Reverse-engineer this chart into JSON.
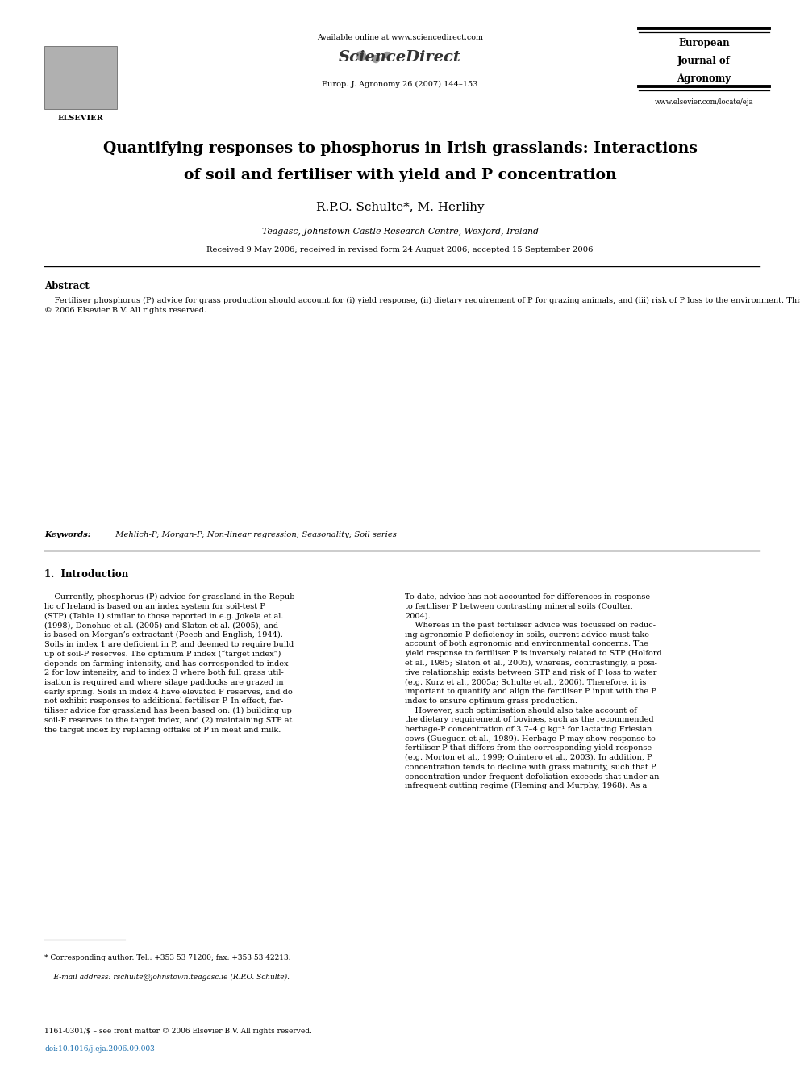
{
  "page_width": 9.92,
  "page_height": 13.23,
  "background_color": "#ffffff",
  "header_available": "Available online at www.sciencedirect.com",
  "header_sciencedirect": "ScienceDirect",
  "header_journal_ref": "Europ. J. Agronomy 26 (2007) 144–153",
  "journal_box_line1": "European",
  "journal_box_line2": "Journal of",
  "journal_box_line3": "Agronomy",
  "journal_url": "www.elsevier.com/locate/eja",
  "elsevier_label": "ELSEVIER",
  "title_line1": "Quantifying responses to phosphorus in Irish grasslands: Interactions",
  "title_line2": "of soil and fertiliser with yield and P concentration",
  "author": "R.P.O. Schulte*, M. Herlihy",
  "affiliation": "Teagasc, Johnstown Castle Research Centre, Wexford, Ireland",
  "received_dates": "Received 9 May 2006; received in revised form 24 August 2006; accepted 15 September 2006",
  "abstract_head": "Abstract",
  "abstract_body": "    Fertiliser phosphorus (P) advice for grass production should account for (i) yield response, (ii) dietary requirement of P for grazing animals, and (iii) risk of P loss to the environment. This paper reports on a large-scale field experiment in which yield and P concentration of herbage were measured for 4 years in response to a range of both fertiliser P inputs and of soil-test P (STP) on 32 grassland sites, which represented eight soil series or associations in the Republic of Ireland. The objectives were to derive fertiliser P requirement to produce 95% of potential yield and adequate herbage-P concentration. A new multiple non-linear regression model was formulated to describe herbage yield and herbage-P concentration as functions of the interaction between fertiliser P and STP. Together, STP, fertiliser P, and year-effects explained on average 34% (range: 9–66%) of the variation in herbage yield, but more than double this, i.e. 73% (59–86%) of the variation in herbage-P concentration, suggesting that STP, determined by either Morgan or Mehlich-3 extractants, accurately reflects plant available P. Fertiliser rates required to reach 95% of potential yield showed large variation between soils, and were generally low at Morgan-P in excess of 3 mg l⁻¹. Higher rates were required to achieve herbage-P concentration of 3 g kg⁻¹ or higher, with lesser differences between soils, and responses to fertiliser P were found up to Morgan-P of 8 mg l⁻¹. There was no conclusive evidence of seasonality of P response.\n© 2006 Elsevier B.V. All rights reserved.",
  "keywords_label": "Keywords:",
  "keywords_text": "  Mehlich-P; Morgan-P; Non-linear regression; Seasonality; Soil series",
  "intro_head": "1.  Introduction",
  "intro_left": "    Currently, phosphorus (P) advice for grassland in the Repub-\nlic of Ireland is based on an index system for soil-test P\n(STP) (Table 1) similar to those reported in e.g. Jokela et al.\n(1998), Donohue et al. (2005) and Slaton et al. (2005), and\nis based on Morgan’s extractant (Peech and English, 1944).\nSoils in index 1 are deficient in P, and deemed to require build\nup of soil-P reserves. The optimum P index (“target index”)\ndepends on farming intensity, and has corresponded to index\n2 for low intensity, and to index 3 where both full grass util-\nisation is required and where silage paddocks are grazed in\nearly spring. Soils in index 4 have elevated P reserves, and do\nnot exhibit responses to additional fertiliser P. In effect, fer-\ntiliser advice for grassland has been based on: (1) building up\nsoil-P reserves to the target index, and (2) maintaining STP at\nthe target index by replacing offtake of P in meat and milk.",
  "intro_right": "To date, advice has not accounted for differences in response\nto fertiliser P between contrasting mineral soils (Coulter,\n2004).\n    Whereas in the past fertiliser advice was focussed on reduc-\ning agronomic-P deficiency in soils, current advice must take\naccount of both agronomic and environmental concerns. The\nyield response to fertiliser P is inversely related to STP (Holford\net al., 1985; Slaton et al., 2005), whereas, contrastingly, a posi-\ntive relationship exists between STP and risk of P loss to water\n(e.g. Kurz et al., 2005a; Schulte et al., 2006). Therefore, it is\nimportant to quantify and align the fertiliser P input with the P\nindex to ensure optimum grass production.\n    However, such optimisation should also take account of\nthe dietary requirement of bovines, such as the recommended\nherbage-P concentration of 3.7–4 g kg⁻¹ for lactating Friesian\ncows (Gueguen et al., 1989). Herbage-P may show response to\nfertiliser P that differs from the corresponding yield response\n(e.g. Morton et al., 1999; Quintero et al., 2003). In addition, P\nconcentration tends to decline with grass maturity, such that P\nconcentration under frequent defoliation exceeds that under an\ninfrequent cutting regime (Fleming and Murphy, 1968). As a",
  "footnote1": "* Corresponding author. Tel.: +353 53 71200; fax: +353 53 42213.",
  "footnote2": "    E-mail address: rschulte@johnstown.teagasc.ie (R.P.O. Schulte).",
  "footer1": "1161-0301/$ – see front matter © 2006 Elsevier B.V. All rights reserved.",
  "footer2": "doi:10.1016/j.eja.2006.09.003",
  "blue_color": "#1a6faf",
  "link_color": "#1a6faf"
}
